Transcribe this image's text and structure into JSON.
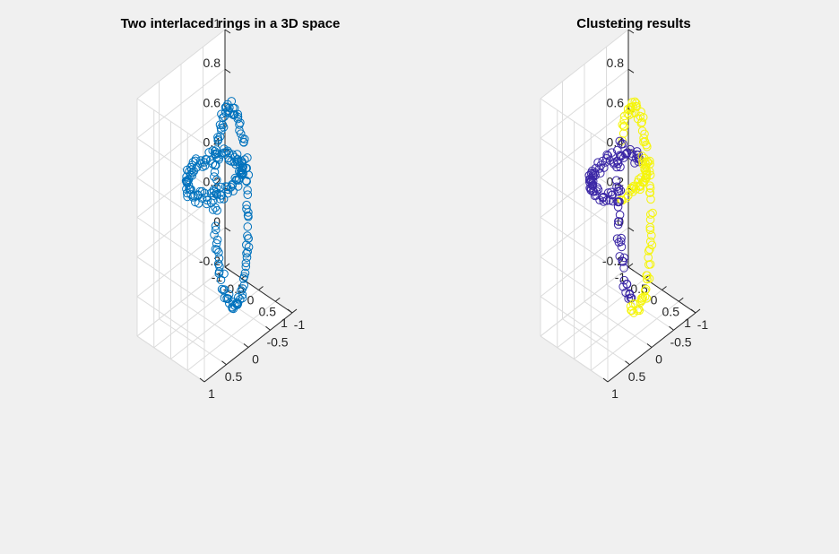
{
  "chart_data": [
    {
      "type": "scatter3d",
      "title": "Two interlaced rings in a 3D space",
      "marker": "o",
      "series": [
        {
          "color": "#0072bd",
          "role": "all-points"
        }
      ],
      "xlim": [
        -1,
        1
      ],
      "ylim": [
        -1,
        1
      ],
      "zlim": [
        -0.2,
        1
      ],
      "x_ticks": [
        "-1",
        "-0.5",
        "0",
        "0.5",
        "1"
      ],
      "y_ticks": [
        "-1",
        "-0.5",
        "0",
        "0.5",
        "1"
      ],
      "z_ticks": [
        "-0.2",
        "0",
        "0.2",
        "0.4",
        "0.6",
        "0.8",
        "1"
      ],
      "rings": [
        {
          "name": "",
          "center": [
            0,
            0,
            0.55
          ],
          "radius": 0.5,
          "plane": "xy",
          "points": 120
        },
        {
          "name": "",
          "center": [
            0.5,
            0,
            0.45
          ],
          "radius": 0.5,
          "plane": "xz",
          "points": 120
        }
      ],
      "grid": true
    },
    {
      "type": "scatter3d",
      "title": "Clustering results",
      "marker": "o",
      "series": [
        {
          "color": "#3b27a6",
          "role": "cluster-1"
        },
        {
          "color": "#f5f50a",
          "role": "cluster-2"
        }
      ],
      "xlim": [
        -1,
        1
      ],
      "ylim": [
        -1,
        1
      ],
      "zlim": [
        -0.2,
        1
      ],
      "x_ticks": [
        "-1",
        "-0.5",
        "0",
        "0.5",
        "1"
      ],
      "y_ticks": [
        "-1",
        "-0.5",
        "0",
        "0.5",
        "1"
      ],
      "z_ticks": [
        "-0.2",
        "0",
        "0.2",
        "0.4",
        "0.6",
        "0.8",
        "1"
      ],
      "rings": [
        {
          "name": "",
          "center": [
            0,
            0,
            0.55
          ],
          "radius": 0.5,
          "plane": "xy",
          "points": 120
        },
        {
          "name": "",
          "center": [
            0.5,
            0,
            0.45
          ],
          "radius": 0.5,
          "plane": "xz",
          "points": 120
        }
      ],
      "grid": true
    }
  ]
}
